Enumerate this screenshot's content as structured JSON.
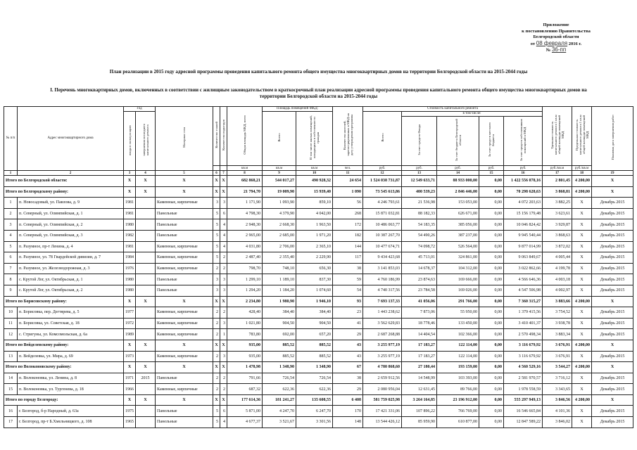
{
  "appendix": {
    "line1": "Приложение",
    "line2": "к постановлению Правительства",
    "line3": "Белгородской области",
    "date_prefix": "от",
    "date_value": "08 февраля",
    "date_suffix": "2016 г.",
    "number_prefix": "№",
    "number_value": "36-пп"
  },
  "title": "План реализации в 2015 году адресной программы проведения капитального ремонта общего имущества многоквартирных домов на территории Белгородской области на 2015-2044 годы",
  "subtitle": "I. Перечень многоквартирных домов, включенных в соответствии с жилищным законодательством в краткосрочный план реализации адресной программы проведения капитального ремонта общего имущества многоквартирных домов на территории Белгородской области на 2015-2044 годы",
  "table": {
    "headers": {
      "num": "№ п/п",
      "address": "Адрес многоквартирного дома",
      "year_group": "Год",
      "year_built": "ввода в эксплуатацию",
      "year_repair": "завершения последнего капитального ремонта",
      "wall": "Материал стен",
      "floors": "Количество этажей",
      "entrances": "Количество подъездов",
      "total_area": "Общая площадь МКД, всего",
      "area_group": "Площадь помещений МКД:",
      "area_all": "Всего:",
      "area_citizens": "В том числе жилых помещений, находящихся в собственности граждан",
      "residents": "Количество жителей, зарегистрированных в МКД на дату утверждения программы",
      "cost_group": "Стоимость капитального ремонта",
      "cost_all": "Всего:",
      "incl": "в том числе:",
      "fund": "За счет средств Фонда",
      "regional": "За счет бюджета Белгородской области",
      "local": "За счет средств местного бюджета",
      "owners": "За счет средств собственников помещений в МКД",
      "unit_cost": "Удельная стоимость капитального ремонта 1 кв.м общей площади помещений МКД",
      "max_cost": "Предельная стоимость капитального ремонта 1 кв.м общей площади помещений МКД",
      "plan_date": "Плановая дата завершения работ"
    },
    "units": [
      "кв.м",
      "кв.м",
      "кв.м",
      "чел.",
      "руб.",
      "руб.",
      "руб.",
      "руб.",
      "руб.",
      "руб./кв.м",
      "руб./кв.м"
    ],
    "column_numbers": [
      "1",
      "2",
      "3",
      "4",
      "5",
      "6",
      "7",
      "8",
      "9",
      "10",
      "11",
      "12",
      "13",
      "14",
      "15",
      "16",
      "17",
      "18",
      "19"
    ],
    "rows": [
      {
        "type": "total",
        "label": "Итого по Белгородской области:",
        "cells": [
          "X",
          "X",
          "X",
          "X",
          "X",
          "682 868,21",
          "544 017,27",
          "490 928,32",
          "24 654",
          "1 524 038 731,87",
          "12 549 633,71",
          "88 933 000,00",
          "0,00",
          "1 422 556 078,16",
          "2 801,45",
          "4 200,00",
          "X"
        ]
      },
      {
        "type": "total",
        "label": "Итого по Белгородскому району:",
        "cells": [
          "X",
          "X",
          "X",
          "X",
          "X",
          "21 794,70",
          "19 009,90",
          "15 939,40",
          "1 090",
          "73 545 613,86",
          "400 539,23",
          "2 846 446,00",
          "0,00",
          "70 298 628,63",
          "3 868,81",
          "4 200,00",
          "X"
        ]
      },
      {
        "type": "item",
        "cells": [
          "1",
          "п. Новосадовый, ул. Павлова, д. 9",
          "1981",
          "",
          "Каменные, кирпичные",
          "3",
          "3",
          "1 171,90",
          "1 093,90",
          "859,10",
          "56",
          "4 246 793,61",
          "21 536,98",
          "153 053,00",
          "0,00",
          "4 072 203,63",
          "3 882,25",
          "X",
          "Декабрь 2015"
        ]
      },
      {
        "type": "item",
        "cells": [
          "2",
          "п. Северный, ул. Олимпийская, д. 1",
          "1981",
          "",
          "Панельные",
          "5",
          "6",
          "4 798,30",
          "4 379,90",
          "4 042,00",
          "268",
          "15 871 032,81",
          "88 182,33",
          "626 671,00",
          "0,00",
          "15 156 179,48",
          "3 623,61",
          "X",
          "Декабрь 2015"
        ]
      },
      {
        "type": "item",
        "cells": [
          "3",
          "п. Северный, ул. Олимпийская, д. 2",
          "1980",
          "",
          "Панельные",
          "5",
          "4",
          "2 948,30",
          "2 668,30",
          "1 963,50",
          "172",
          "10 486 063,77",
          "54 183,35",
          "385 056,00",
          "0,00",
          "10 046 824,42",
          "3 929,87",
          "X",
          "Декабрь 2015"
        ]
      },
      {
        "type": "item",
        "cells": [
          "4",
          "п. Северный, ул. Олимпийская, д. 3",
          "1982",
          "",
          "Панельные",
          "5",
          "4",
          "2 965,00",
          "2 685,00",
          "1 971,20",
          "182",
          "10 387 267,70",
          "54 490,26",
          "387 237,00",
          "0,00",
          "9 945 540,44",
          "3 868,63",
          "X",
          "Декабрь 2015"
        ]
      },
      {
        "type": "item",
        "cells": [
          "5",
          "п. Разумное, пр-т Ленина, д. 4",
          "1981",
          "",
          "Каменные, кирпичные",
          "5",
          "4",
          "4 031,80",
          "2 706,00",
          "2 365,10",
          "144",
          "10 477 674,71",
          "74 098,72",
          "526 564,00",
          "0,00",
          "9 877 014,99",
          "3 872,02",
          "X",
          "Декабрь 2015"
        ]
      },
      {
        "type": "item",
        "cells": [
          "6",
          "п. Разумное, ул. 78 Гвардейской дивизии, д. 7",
          "1984",
          "",
          "Каменные, кирпичные",
          "5",
          "2",
          "2 487,40",
          "2 355,40",
          "2 229,90",
          "117",
          "9 434 423,68",
          "45 713,01",
          "324 861,00",
          "0,00",
          "9 063 849,67",
          "4 005,44",
          "X",
          "Декабрь 2015"
        ]
      },
      {
        "type": "item",
        "cells": [
          "7",
          "п. Разумное, ул. Железнодорожная, д. 3",
          "1976",
          "",
          "Каменные, кирпичные",
          "2",
          "2",
          "798,70",
          "748,10",
          "656,30",
          "38",
          "3 141 853,03",
          "14 678,37",
          "104 312,00",
          "0,00",
          "3 022 862,66",
          "4 199,78",
          "X",
          "Декабрь 2015"
        ]
      },
      {
        "type": "item",
        "cells": [
          "8",
          "с. Крутой Лог, ул. Октябрьская, д. 1",
          "1980",
          "",
          "Панельные",
          "3",
          "3",
          "1 299,10",
          "1 189,10",
          "837,30",
          "59",
          "4 760 186,99",
          "23 874,63",
          "169 666,00",
          "0,00",
          "4 566 646,36",
          "4 003,18",
          "X",
          "Декабрь 2015"
        ]
      },
      {
        "type": "item",
        "cells": [
          "9",
          "с. Крутой Лог, ул. Октябрьская, д. 2",
          "1980",
          "",
          "Панельные",
          "3",
          "3",
          "1 294,20",
          "1 184,20",
          "1 074,60",
          "54",
          "4 740 317,56",
          "23 784,58",
          "169 026,00",
          "0,00",
          "4 547 506,98",
          "4 002,97",
          "X",
          "Декабрь 2015"
        ]
      },
      {
        "type": "total",
        "label": "Итого по Борисовскому району:",
        "cells": [
          "X",
          "X",
          "X",
          "X",
          "X",
          "2 234,80",
          "1 980,90",
          "1 946,10",
          "93",
          "7 693 137,33",
          "41 056,06",
          "291 766,00",
          "0,00",
          "7 360 315,27",
          "3 883,66",
          "4 200,00",
          "X"
        ]
      },
      {
        "type": "item",
        "cells": [
          "10",
          "п. Борисовка, пер. Дегтярева, д. 5",
          "1977",
          "",
          "Каменные, кирпичные",
          "2",
          "2",
          "428,40",
          "384,40",
          "384,40",
          "23",
          "1 443 238,62",
          "7 873,06",
          "55 950,00",
          "0,00",
          "1 379 415,56",
          "3 754,52",
          "X",
          "Декабрь 2015"
        ]
      },
      {
        "type": "item",
        "cells": [
          "11",
          "п. Борисовка, ул. Советская, д. 18",
          "1972",
          "",
          "Каменные, кирпичные",
          "2",
          "3",
          "1 021,80",
          "904,50",
          "904,50",
          "41",
          "3 562 629,83",
          "18 778,46",
          "133 450,00",
          "0,00",
          "3 410 401,37",
          "3 938,78",
          "X",
          "Декабрь 2015"
        ]
      },
      {
        "type": "item",
        "cells": [
          "12",
          "с. Стригуны, ул. Комсомольская, д. 6а",
          "1989",
          "",
          "Каменные, кирпичные",
          "2",
          "1",
          "783,80",
          "692,00",
          "657,20",
          "29",
          "2 687 268,88",
          "14 404,54",
          "102 366,00",
          "0,00",
          "2 570 498,34",
          "3 883,34",
          "X",
          "Декабрь 2015"
        ]
      },
      {
        "type": "total",
        "label": "Итого по Вейделевскому району:",
        "cells": [
          "X",
          "X",
          "X",
          "X",
          "X",
          "935,00",
          "885,52",
          "885,52",
          "43",
          "3 255 977,19",
          "17 183,27",
          "122 114,00",
          "0,00",
          "3 116 679,92",
          "3 676,91",
          "4 200,00",
          "X"
        ]
      },
      {
        "type": "item",
        "cells": [
          "13",
          "п. Вейделевка, ул. Мира, д. 69",
          "1973",
          "",
          "Каменные, кирпичные",
          "2",
          "3",
          "935,00",
          "885,52",
          "885,52",
          "43",
          "3 255 977,19",
          "17 183,27",
          "122 114,00",
          "0,00",
          "3 116 679,92",
          "3 676,91",
          "X",
          "Декабрь 2015"
        ]
      },
      {
        "type": "total",
        "label": "Итого по Волоконовскому району:",
        "cells": [
          "X",
          "X",
          "X",
          "X",
          "X",
          "1 478,98",
          "1 348,90",
          "1 348,90",
          "67",
          "4 780 868,60",
          "27 180,44",
          "193 159,00",
          "0,00",
          "4 560 529,16",
          "3 544,27",
          "4 200,00",
          "X"
        ]
      },
      {
        "type": "item",
        "cells": [
          "14",
          "п. Волоконовка, ул. Ленина, д. 8",
          "1971",
          "2015",
          "Панельные",
          "2",
          "2",
          "791,66",
          "726,54",
          "726,54",
          "38",
          "2 659 912,56",
          "14 548,99",
          "103 393,00",
          "0,00",
          "2 581 970,57",
          "3 716,12",
          "X",
          "Декабрь 2015"
        ]
      },
      {
        "type": "item",
        "cells": [
          "15",
          "п. Волоконовка, ул. Тургенева, д. 18",
          "1966",
          "",
          "Каменные, кирпичные",
          "2",
          "2",
          "687,32",
          "622,36",
          "622,36",
          "29",
          "2 080 956,04",
          "12 631,45",
          "89 766,00",
          "0,00",
          "1 978 558,59",
          "3 343,65",
          "X",
          "Декабрь 2015"
        ]
      },
      {
        "type": "total",
        "label": "Итого по городу Белгороду:",
        "cells": [
          "X",
          "X",
          "X",
          "X",
          "X",
          "177 614,36",
          "181 241,27",
          "135 608,55",
          "6 408",
          "581 759 025,98",
          "3 264 164,85",
          "23 196 912,00",
          "0,00",
          "555 297 949,13",
          "3 846,56",
          "4 200,00",
          "X"
        ]
      },
      {
        "type": "item",
        "cells": [
          "16",
          "г. Белгород, б-р Народный, д. 63а",
          "1975",
          "",
          "Панельные",
          "5",
          "6",
          "5 871,00",
          "4 247,70",
          "6 247,70",
          "170",
          "17 421 331,06",
          "107 896,22",
          "766 769,00",
          "0,00",
          "16 546 665,84",
          "4 101,36",
          "X",
          "Декабрь 2015"
        ]
      },
      {
        "type": "item",
        "cells": [
          "17",
          "г. Белгород, пр-т Б.Хмельницкого, д. 108",
          "1965",
          "",
          "Панельные",
          "5",
          "4",
          "4 677,37",
          "3 521,67",
          "3 301,56",
          "148",
          "13 544 426,12",
          "85 959,90",
          "610 877,00",
          "0,00",
          "12 847 589,22",
          "3 846,02",
          "X",
          "Декабрь 2015"
        ]
      }
    ]
  }
}
